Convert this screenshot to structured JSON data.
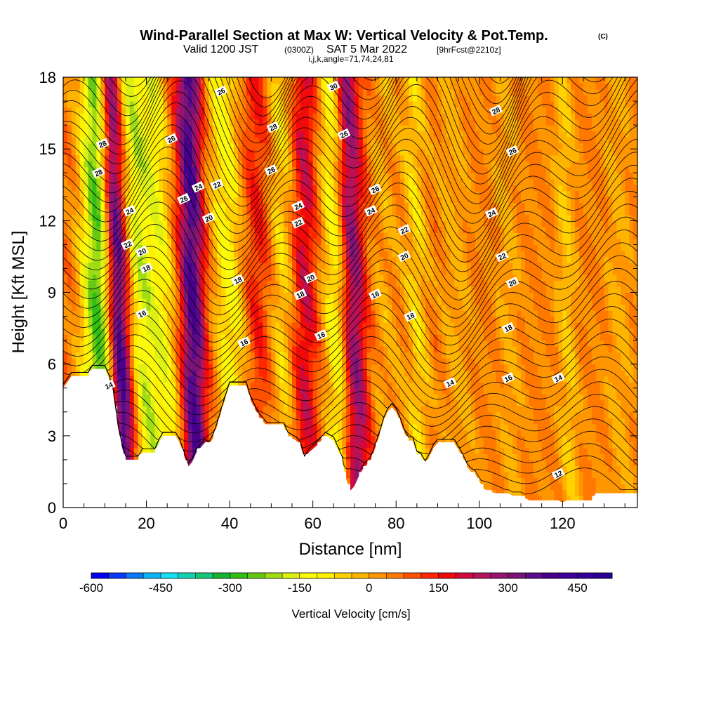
{
  "header": {
    "title_main": "Wind-Parallel Section at Max W: Vertical Velocity & Pot.Temp.",
    "title_mark": "(C)",
    "valid_label": "Valid 1200 JST",
    "valid_utc": "(0300Z)",
    "valid_date": "SAT 5 Mar 2022",
    "forecast": "[9hrFcst@2210z]",
    "indices": "i,j,k,angle=71,74,24,81"
  },
  "chart_data": {
    "type": "heatmap",
    "xlabel": "Distance [nm]",
    "ylabel": "Height [Kft MSL]",
    "xlim": [
      0,
      138
    ],
    "ylim": [
      0,
      18
    ],
    "x_ticks": [
      0,
      20,
      40,
      60,
      80,
      100,
      120
    ],
    "y_ticks": [
      0,
      3,
      6,
      9,
      12,
      15,
      18
    ],
    "colorbar": {
      "label": "Vertical Velocity [cm/s]",
      "min": -600,
      "max": 525,
      "step": 37.5,
      "tick_values": [
        -600,
        -450,
        -300,
        -150,
        0,
        150,
        300,
        450
      ],
      "colors": [
        "#0000f0",
        "#0a37f5",
        "#0a78f5",
        "#0ab4f5",
        "#14e1f5",
        "#14d2b4",
        "#14c878",
        "#14b432",
        "#32be14",
        "#64c814",
        "#a0dc14",
        "#dcf014",
        "#fafa0a",
        "#fff000",
        "#ffd200",
        "#ffb400",
        "#ff9600",
        "#ff7800",
        "#ff5000",
        "#ff2800",
        "#f00a0a",
        "#d20a3c",
        "#b4145a",
        "#96146e",
        "#781478",
        "#5a0a8c",
        "#46008c",
        "#3c0096",
        "#320096",
        "#280096"
      ]
    },
    "terrain_kft": [
      [
        0,
        5.0
      ],
      [
        2,
        5.5
      ],
      [
        6,
        5.5
      ],
      [
        7,
        5.8
      ],
      [
        10,
        5.8
      ],
      [
        11,
        5.4
      ],
      [
        12,
        4.8
      ],
      [
        13,
        3.5
      ],
      [
        14,
        2.6
      ],
      [
        15,
        2.0
      ],
      [
        18,
        2.0
      ],
      [
        19,
        2.3
      ],
      [
        22,
        2.3
      ],
      [
        23,
        2.7
      ],
      [
        24,
        3.0
      ],
      [
        27,
        3.0
      ],
      [
        28,
        2.7
      ],
      [
        29,
        2.2
      ],
      [
        30,
        1.7
      ],
      [
        31,
        1.9
      ],
      [
        32,
        2.3
      ],
      [
        34,
        2.7
      ],
      [
        35,
        2.6
      ],
      [
        36,
        2.9
      ],
      [
        37,
        3.4
      ],
      [
        38,
        4.0
      ],
      [
        40,
        5.1
      ],
      [
        44,
        5.1
      ],
      [
        45,
        4.5
      ],
      [
        47,
        3.8
      ],
      [
        48,
        3.6
      ],
      [
        49,
        3.4
      ],
      [
        53,
        3.4
      ],
      [
        54,
        3.0
      ],
      [
        56,
        2.8
      ],
      [
        57,
        2.6
      ],
      [
        58,
        2.0
      ],
      [
        59,
        2.3
      ],
      [
        61,
        2.6
      ],
      [
        63,
        3.0
      ],
      [
        65,
        2.8
      ],
      [
        67,
        2.0
      ],
      [
        68,
        1.2
      ],
      [
        69,
        0.7
      ],
      [
        70,
        0.9
      ],
      [
        71,
        1.3
      ],
      [
        72,
        1.6
      ],
      [
        74,
        2.0
      ],
      [
        75,
        2.5
      ],
      [
        76,
        3.0
      ],
      [
        77,
        3.6
      ],
      [
        78,
        4.0
      ],
      [
        79,
        4.2
      ],
      [
        80,
        4.0
      ],
      [
        81,
        3.6
      ],
      [
        82,
        3.1
      ],
      [
        83,
        2.8
      ],
      [
        84,
        2.8
      ],
      [
        85,
        2.2
      ],
      [
        86,
        2.1
      ],
      [
        87,
        1.8
      ],
      [
        88,
        2.1
      ],
      [
        89,
        2.5
      ],
      [
        90,
        2.7
      ],
      [
        94,
        2.7
      ],
      [
        95,
        2.4
      ],
      [
        96,
        2.1
      ],
      [
        97,
        1.7
      ],
      [
        98,
        1.5
      ],
      [
        99,
        1.4
      ],
      [
        100,
        1.1
      ],
      [
        101,
        0.8
      ],
      [
        102,
        0.7
      ],
      [
        104,
        0.6
      ],
      [
        106,
        0.6
      ],
      [
        107,
        0.6
      ],
      [
        108,
        0.5
      ],
      [
        110,
        0.5
      ],
      [
        111,
        0.4
      ],
      [
        112,
        0.3
      ],
      [
        119,
        0.3
      ],
      [
        120,
        0.2
      ],
      [
        121,
        0.3
      ],
      [
        127,
        0.3
      ],
      [
        128,
        0.6
      ],
      [
        138,
        0.6
      ]
    ],
    "w_features": [
      {
        "x0": 9,
        "x1": 8,
        "w": 4.0,
        "amp": -330
      },
      {
        "x0": 15,
        "x1": 11,
        "w": 2.6,
        "amp": 380
      },
      {
        "x0": 21,
        "x1": 16,
        "w": 3.0,
        "amp": -200
      },
      {
        "x0": 26,
        "x1": 21,
        "w": 3.5,
        "amp": -180
      },
      {
        "x0": 32,
        "x1": 30,
        "w": 3.0,
        "amp": 320
      },
      {
        "x0": 42,
        "x1": 38,
        "w": 4.0,
        "amp": -170
      },
      {
        "x0": 47,
        "x1": 46,
        "w": 3.5,
        "amp": 90
      },
      {
        "x0": 53,
        "x1": 52,
        "w": 3.0,
        "amp": -120
      },
      {
        "x0": 58,
        "x1": 58,
        "w": 3.0,
        "amp": 140
      },
      {
        "x0": 67,
        "x1": 64,
        "w": 3.0,
        "amp": -190
      },
      {
        "x0": 71,
        "x1": 68,
        "w": 3.0,
        "amp": 240
      },
      {
        "x0": 78,
        "x1": 77,
        "w": 3.5,
        "amp": -60
      },
      {
        "x0": 86,
        "x1": 84,
        "w": 3.0,
        "amp": -110
      },
      {
        "x0": 96,
        "x1": 93,
        "w": 3.5,
        "amp": -70
      },
      {
        "x0": 108,
        "x1": 106,
        "w": 3.0,
        "amp": -60
      },
      {
        "x0": 122,
        "x1": 120,
        "w": 2.5,
        "amp": -110
      },
      {
        "x0": 134,
        "x1": 133,
        "w": 3.0,
        "amp": -70
      }
    ],
    "contour_labels": [
      {
        "x": 9.5,
        "y": 15.2,
        "text": "28"
      },
      {
        "x": 8.5,
        "y": 14.0,
        "text": "28"
      },
      {
        "x": 26,
        "y": 15.4,
        "text": "26"
      },
      {
        "x": 16,
        "y": 12.4,
        "text": "24"
      },
      {
        "x": 15.5,
        "y": 11.0,
        "text": "22"
      },
      {
        "x": 19,
        "y": 10.7,
        "text": "20"
      },
      {
        "x": 20,
        "y": 10.0,
        "text": "18"
      },
      {
        "x": 19,
        "y": 8.1,
        "text": "16"
      },
      {
        "x": 11,
        "y": 5.1,
        "text": "14"
      },
      {
        "x": 38,
        "y": 17.4,
        "text": "26"
      },
      {
        "x": 29,
        "y": 12.9,
        "text": "26"
      },
      {
        "x": 32.5,
        "y": 13.4,
        "text": "24"
      },
      {
        "x": 37,
        "y": 13.5,
        "text": "22"
      },
      {
        "x": 35,
        "y": 12.1,
        "text": "20"
      },
      {
        "x": 42,
        "y": 9.5,
        "text": "18"
      },
      {
        "x": 43.5,
        "y": 6.9,
        "text": "16"
      },
      {
        "x": 50.5,
        "y": 15.9,
        "text": "28"
      },
      {
        "x": 50,
        "y": 14.1,
        "text": "26"
      },
      {
        "x": 56.5,
        "y": 12.6,
        "text": "24"
      },
      {
        "x": 56.5,
        "y": 11.9,
        "text": "22"
      },
      {
        "x": 59.5,
        "y": 9.6,
        "text": "20"
      },
      {
        "x": 57,
        "y": 8.9,
        "text": "18"
      },
      {
        "x": 62,
        "y": 7.2,
        "text": "16"
      },
      {
        "x": 65,
        "y": 17.6,
        "text": "30"
      },
      {
        "x": 67.5,
        "y": 15.6,
        "text": "26"
      },
      {
        "x": 75,
        "y": 13.3,
        "text": "26"
      },
      {
        "x": 74,
        "y": 12.4,
        "text": "24"
      },
      {
        "x": 82,
        "y": 11.6,
        "text": "22"
      },
      {
        "x": 82,
        "y": 10.5,
        "text": "20"
      },
      {
        "x": 75,
        "y": 8.9,
        "text": "16"
      },
      {
        "x": 83.5,
        "y": 8.0,
        "text": "16"
      },
      {
        "x": 104,
        "y": 16.6,
        "text": "28"
      },
      {
        "x": 108,
        "y": 14.9,
        "text": "26"
      },
      {
        "x": 103,
        "y": 12.3,
        "text": "24"
      },
      {
        "x": 105.5,
        "y": 10.5,
        "text": "22"
      },
      {
        "x": 108,
        "y": 9.4,
        "text": "20"
      },
      {
        "x": 107,
        "y": 7.5,
        "text": "18"
      },
      {
        "x": 107,
        "y": 5.4,
        "text": "16"
      },
      {
        "x": 93,
        "y": 5.2,
        "text": "14"
      },
      {
        "x": 119,
        "y": 5.4,
        "text": "14"
      },
      {
        "x": 119,
        "y": 1.4,
        "text": "12"
      }
    ]
  }
}
